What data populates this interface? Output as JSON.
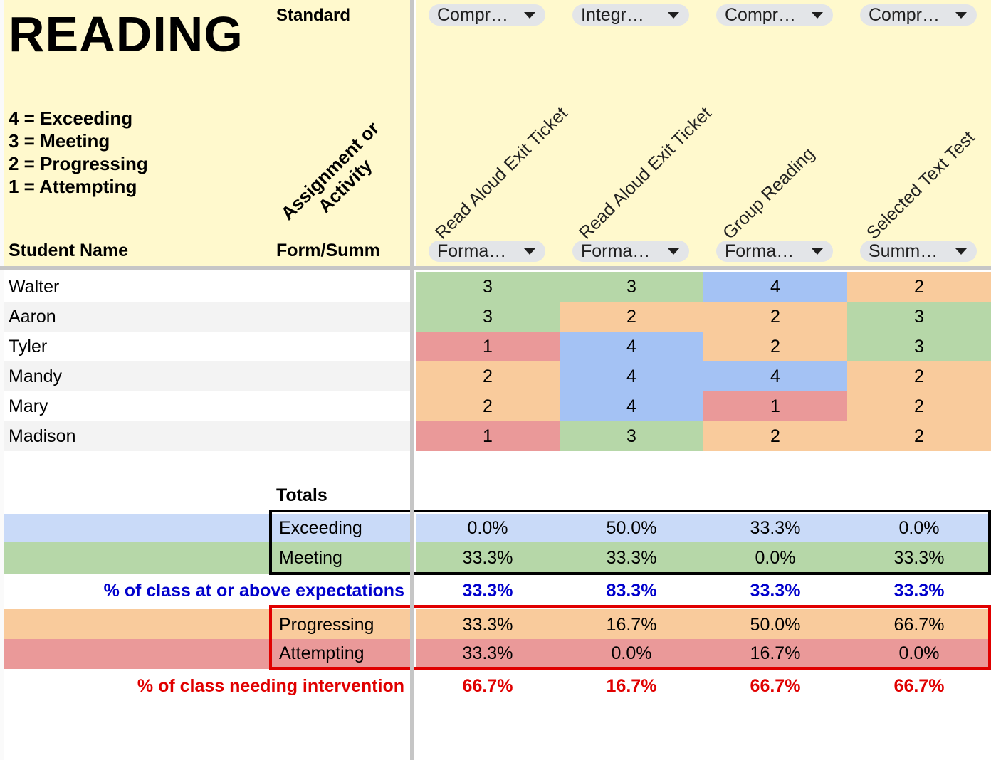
{
  "title": "READING",
  "standard_label": "Standard",
  "assignment_label": "Assignment or Activity",
  "student_name_label": "Student Name",
  "formsumm_label": "Form/Summ",
  "legend": [
    "4 = Exceeding",
    "3 = Meeting",
    "2 = Progressing",
    "1 = Attempting"
  ],
  "columns": [
    {
      "standard": "Compr…",
      "assignment": "Read Aloud Exit Ticket",
      "type": "Forma…"
    },
    {
      "standard": "Integr…",
      "assignment": "Read Aloud Exit Ticket",
      "type": "Forma…"
    },
    {
      "standard": "Compr…",
      "assignment": "Group Reading",
      "type": "Forma…"
    },
    {
      "standard": "Compr…",
      "assignment": "Selected Text Test",
      "type": "Summ…"
    }
  ],
  "students": [
    {
      "name": "Walter",
      "scores": [
        "3",
        "3",
        "4",
        "2"
      ]
    },
    {
      "name": "Aaron",
      "scores": [
        "3",
        "2",
        "2",
        "3"
      ]
    },
    {
      "name": "Tyler",
      "scores": [
        "1",
        "4",
        "2",
        "3"
      ]
    },
    {
      "name": "Mandy",
      "scores": [
        "2",
        "4",
        "4",
        "2"
      ]
    },
    {
      "name": "Mary",
      "scores": [
        "2",
        "4",
        "1",
        "2"
      ]
    },
    {
      "name": "Madison",
      "scores": [
        "1",
        "3",
        "2",
        "2"
      ]
    }
  ],
  "score_colors": {
    "1": "#ea9999",
    "2": "#f9cb9c",
    "3": "#b6d7a8",
    "4": "#a4c2f4"
  },
  "totals_label": "Totals",
  "summary": {
    "exceeding": {
      "label": "Exceeding",
      "values": [
        "0.0%",
        "50.0%",
        "33.3%",
        "0.0%"
      ],
      "color": "#c9daf8"
    },
    "meeting": {
      "label": "Meeting",
      "values": [
        "33.3%",
        "33.3%",
        "0.0%",
        "33.3%"
      ],
      "color": "#b6d7a8"
    },
    "at_or_above": {
      "label": "% of class at or above expectations",
      "values": [
        "33.3%",
        "83.3%",
        "33.3%",
        "33.3%"
      ],
      "color": "#0000cc"
    },
    "progressing": {
      "label": "Progressing",
      "values": [
        "33.3%",
        "16.7%",
        "50.0%",
        "66.7%"
      ],
      "color": "#f9cb9c"
    },
    "attempting": {
      "label": "Attempting",
      "values": [
        "33.3%",
        "0.0%",
        "16.7%",
        "0.0%"
      ],
      "color": "#ea9999"
    },
    "intervention": {
      "label": "% of class needing intervention",
      "values": [
        "66.7%",
        "16.7%",
        "66.7%",
        "66.7%"
      ],
      "color": "#e00000"
    }
  }
}
